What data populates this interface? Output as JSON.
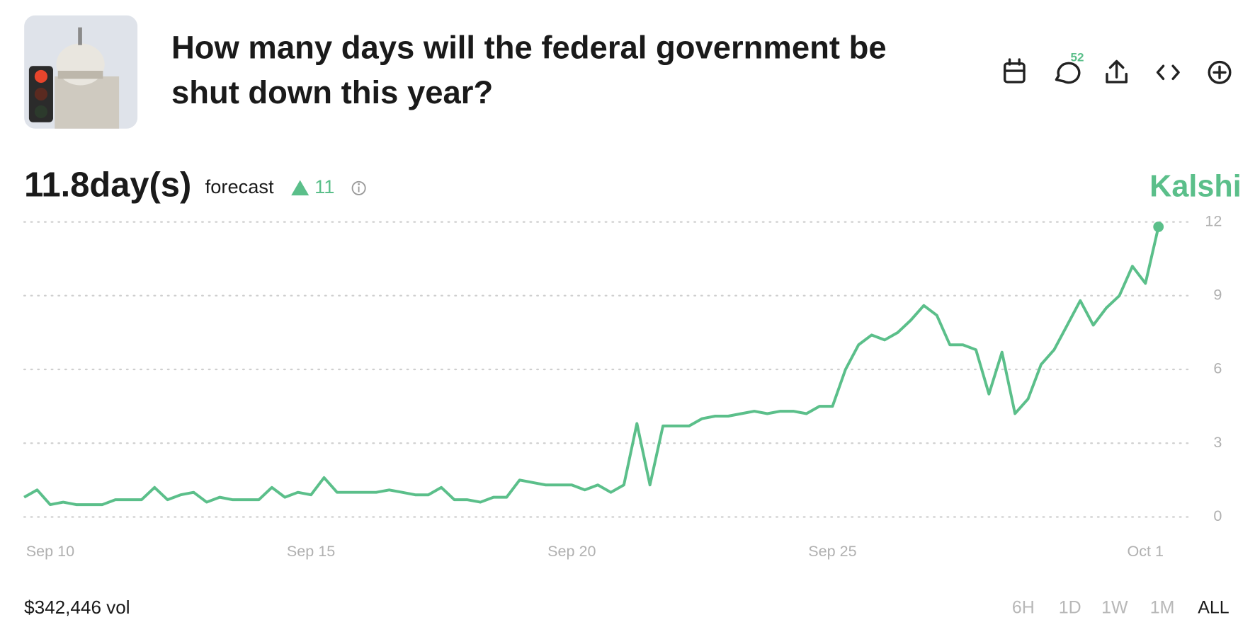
{
  "header": {
    "title": [
      "How many days will the federal government be",
      "shut down this year?"
    ],
    "comment_count": "52"
  },
  "forecast": {
    "value": "11.8day(s)",
    "label": "forecast",
    "change": "11"
  },
  "brand": "Kalshi",
  "chart_data": {
    "type": "line",
    "x": [
      null,
      null,
      "Sep 10",
      null,
      null,
      null,
      null,
      null,
      null,
      null,
      null,
      null,
      null,
      null,
      null,
      null,
      null,
      null,
      null,
      null,
      null,
      null,
      "Sep 15",
      null,
      null,
      null,
      null,
      null,
      null,
      null,
      null,
      null,
      null,
      null,
      null,
      null,
      null,
      null,
      null,
      null,
      null,
      null,
      "Sep 20",
      null,
      null,
      null,
      null,
      null,
      null,
      null,
      null,
      null,
      null,
      null,
      null,
      null,
      null,
      null,
      null,
      null,
      null,
      null,
      "Sep 25",
      null,
      null,
      null,
      null,
      null,
      null,
      null,
      null,
      null,
      null,
      null,
      null,
      null,
      null,
      null,
      null,
      null,
      null,
      null,
      null,
      null,
      null,
      null,
      "Oct 1",
      null
    ],
    "series": [
      {
        "color": "#5bbf8a",
        "values": [
          0.8,
          1.1,
          0.5,
          0.6,
          0.5,
          0.5,
          0.5,
          0.7,
          0.7,
          0.7,
          1.2,
          0.7,
          0.9,
          1.0,
          0.6,
          0.8,
          0.7,
          0.7,
          0.7,
          1.2,
          0.8,
          1.0,
          0.9,
          1.6,
          1.0,
          1.0,
          1.0,
          1.0,
          1.1,
          1.0,
          0.9,
          0.9,
          1.2,
          0.7,
          0.7,
          0.6,
          0.8,
          0.8,
          1.5,
          1.4,
          1.3,
          1.3,
          1.3,
          1.1,
          1.3,
          1.0,
          1.3,
          3.8,
          1.3,
          3.7,
          3.7,
          3.7,
          4.0,
          4.1,
          4.1,
          4.2,
          4.3,
          4.2,
          4.3,
          4.3,
          4.2,
          4.5,
          4.5,
          6.0,
          7.0,
          7.4,
          7.2,
          7.5,
          8.0,
          8.6,
          8.2,
          7.0,
          7.0,
          6.8,
          5.0,
          6.7,
          4.2,
          4.8,
          6.2,
          6.8,
          7.8,
          8.8,
          7.8,
          8.5,
          9.0,
          10.2,
          9.5,
          11.8
        ]
      }
    ],
    "ylim": [
      0,
      12
    ],
    "yticks": [
      0,
      3,
      6,
      9,
      12
    ],
    "grid": true
  },
  "footer": {
    "volume": "$342,446 vol",
    "ranges": [
      "6H",
      "1D",
      "1W",
      "1M",
      "ALL"
    ],
    "active_range": "ALL"
  }
}
